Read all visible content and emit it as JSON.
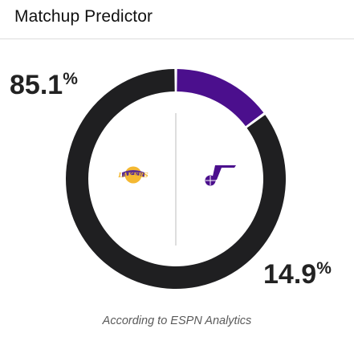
{
  "title": "Matchup Predictor",
  "caption": "According to ESPN Analytics",
  "colors": {
    "home_team": "#1f1f21",
    "away_team": "#4b0f8d"
  },
  "chart_data": {
    "type": "pie",
    "title": "Matchup Predictor",
    "values": [
      85.1,
      14.9
    ],
    "value_labels": [
      "85.1",
      "14.9"
    ],
    "unit": "%",
    "colors": [
      "#1f1f21",
      "#4b0f8d"
    ],
    "logos": [
      "lakers-logo",
      "jazz-logo"
    ]
  }
}
